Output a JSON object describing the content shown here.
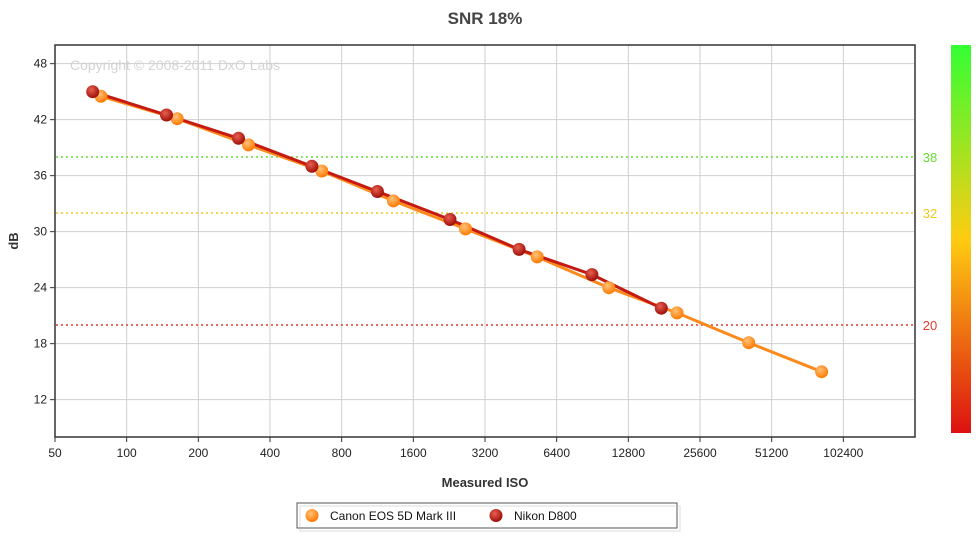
{
  "chart_data": {
    "type": "line",
    "title": "SNR 18%",
    "xlabel": "Measured ISO",
    "ylabel": "dB",
    "x_scale": "log2",
    "xlim": [
      50,
      204800
    ],
    "ylim": [
      8,
      50
    ],
    "x_ticks": [
      50,
      100,
      200,
      400,
      800,
      1600,
      3200,
      6400,
      12800,
      25600,
      51200,
      102400
    ],
    "y_ticks": [
      12,
      18,
      24,
      30,
      36,
      42,
      48
    ],
    "grid": true,
    "watermark": "Copyright © 2008-2011 DxO Labs",
    "series": [
      {
        "name": "Canon EOS 5D Mark III",
        "color": "#ff8a1c",
        "points": [
          [
            78,
            44.5
          ],
          [
            163,
            42.1
          ],
          [
            325,
            39.3
          ],
          [
            660,
            36.5
          ],
          [
            1320,
            33.3
          ],
          [
            2650,
            30.3
          ],
          [
            5300,
            27.3
          ],
          [
            10600,
            24.0
          ],
          [
            20500,
            21.3
          ],
          [
            41000,
            18.1
          ],
          [
            83000,
            15.0
          ]
        ]
      },
      {
        "name": "Nikon D800",
        "color": "#c41a12",
        "points": [
          [
            72,
            45.0
          ],
          [
            147,
            42.5
          ],
          [
            295,
            40.0
          ],
          [
            600,
            37.0
          ],
          [
            1130,
            34.3
          ],
          [
            2280,
            31.3
          ],
          [
            4450,
            28.1
          ],
          [
            9000,
            25.4
          ],
          [
            17600,
            21.8
          ]
        ]
      }
    ],
    "reference_lines": [
      {
        "value": 38,
        "label": "38",
        "color": "#66dd33"
      },
      {
        "value": 32,
        "label": "32",
        "color": "#f2c81a"
      },
      {
        "value": 20,
        "label": "20",
        "color": "#e53a2a"
      }
    ],
    "color_scale": {
      "top": "#33ff33",
      "middle": "#ffcc11",
      "bottom": "#dd1111"
    },
    "legend": {
      "placement": "bottom",
      "entries": [
        {
          "label": "Canon EOS 5D Mark III",
          "color": "#ff8a1c"
        },
        {
          "label": "Nikon D800",
          "color": "#c41a12"
        }
      ]
    }
  }
}
